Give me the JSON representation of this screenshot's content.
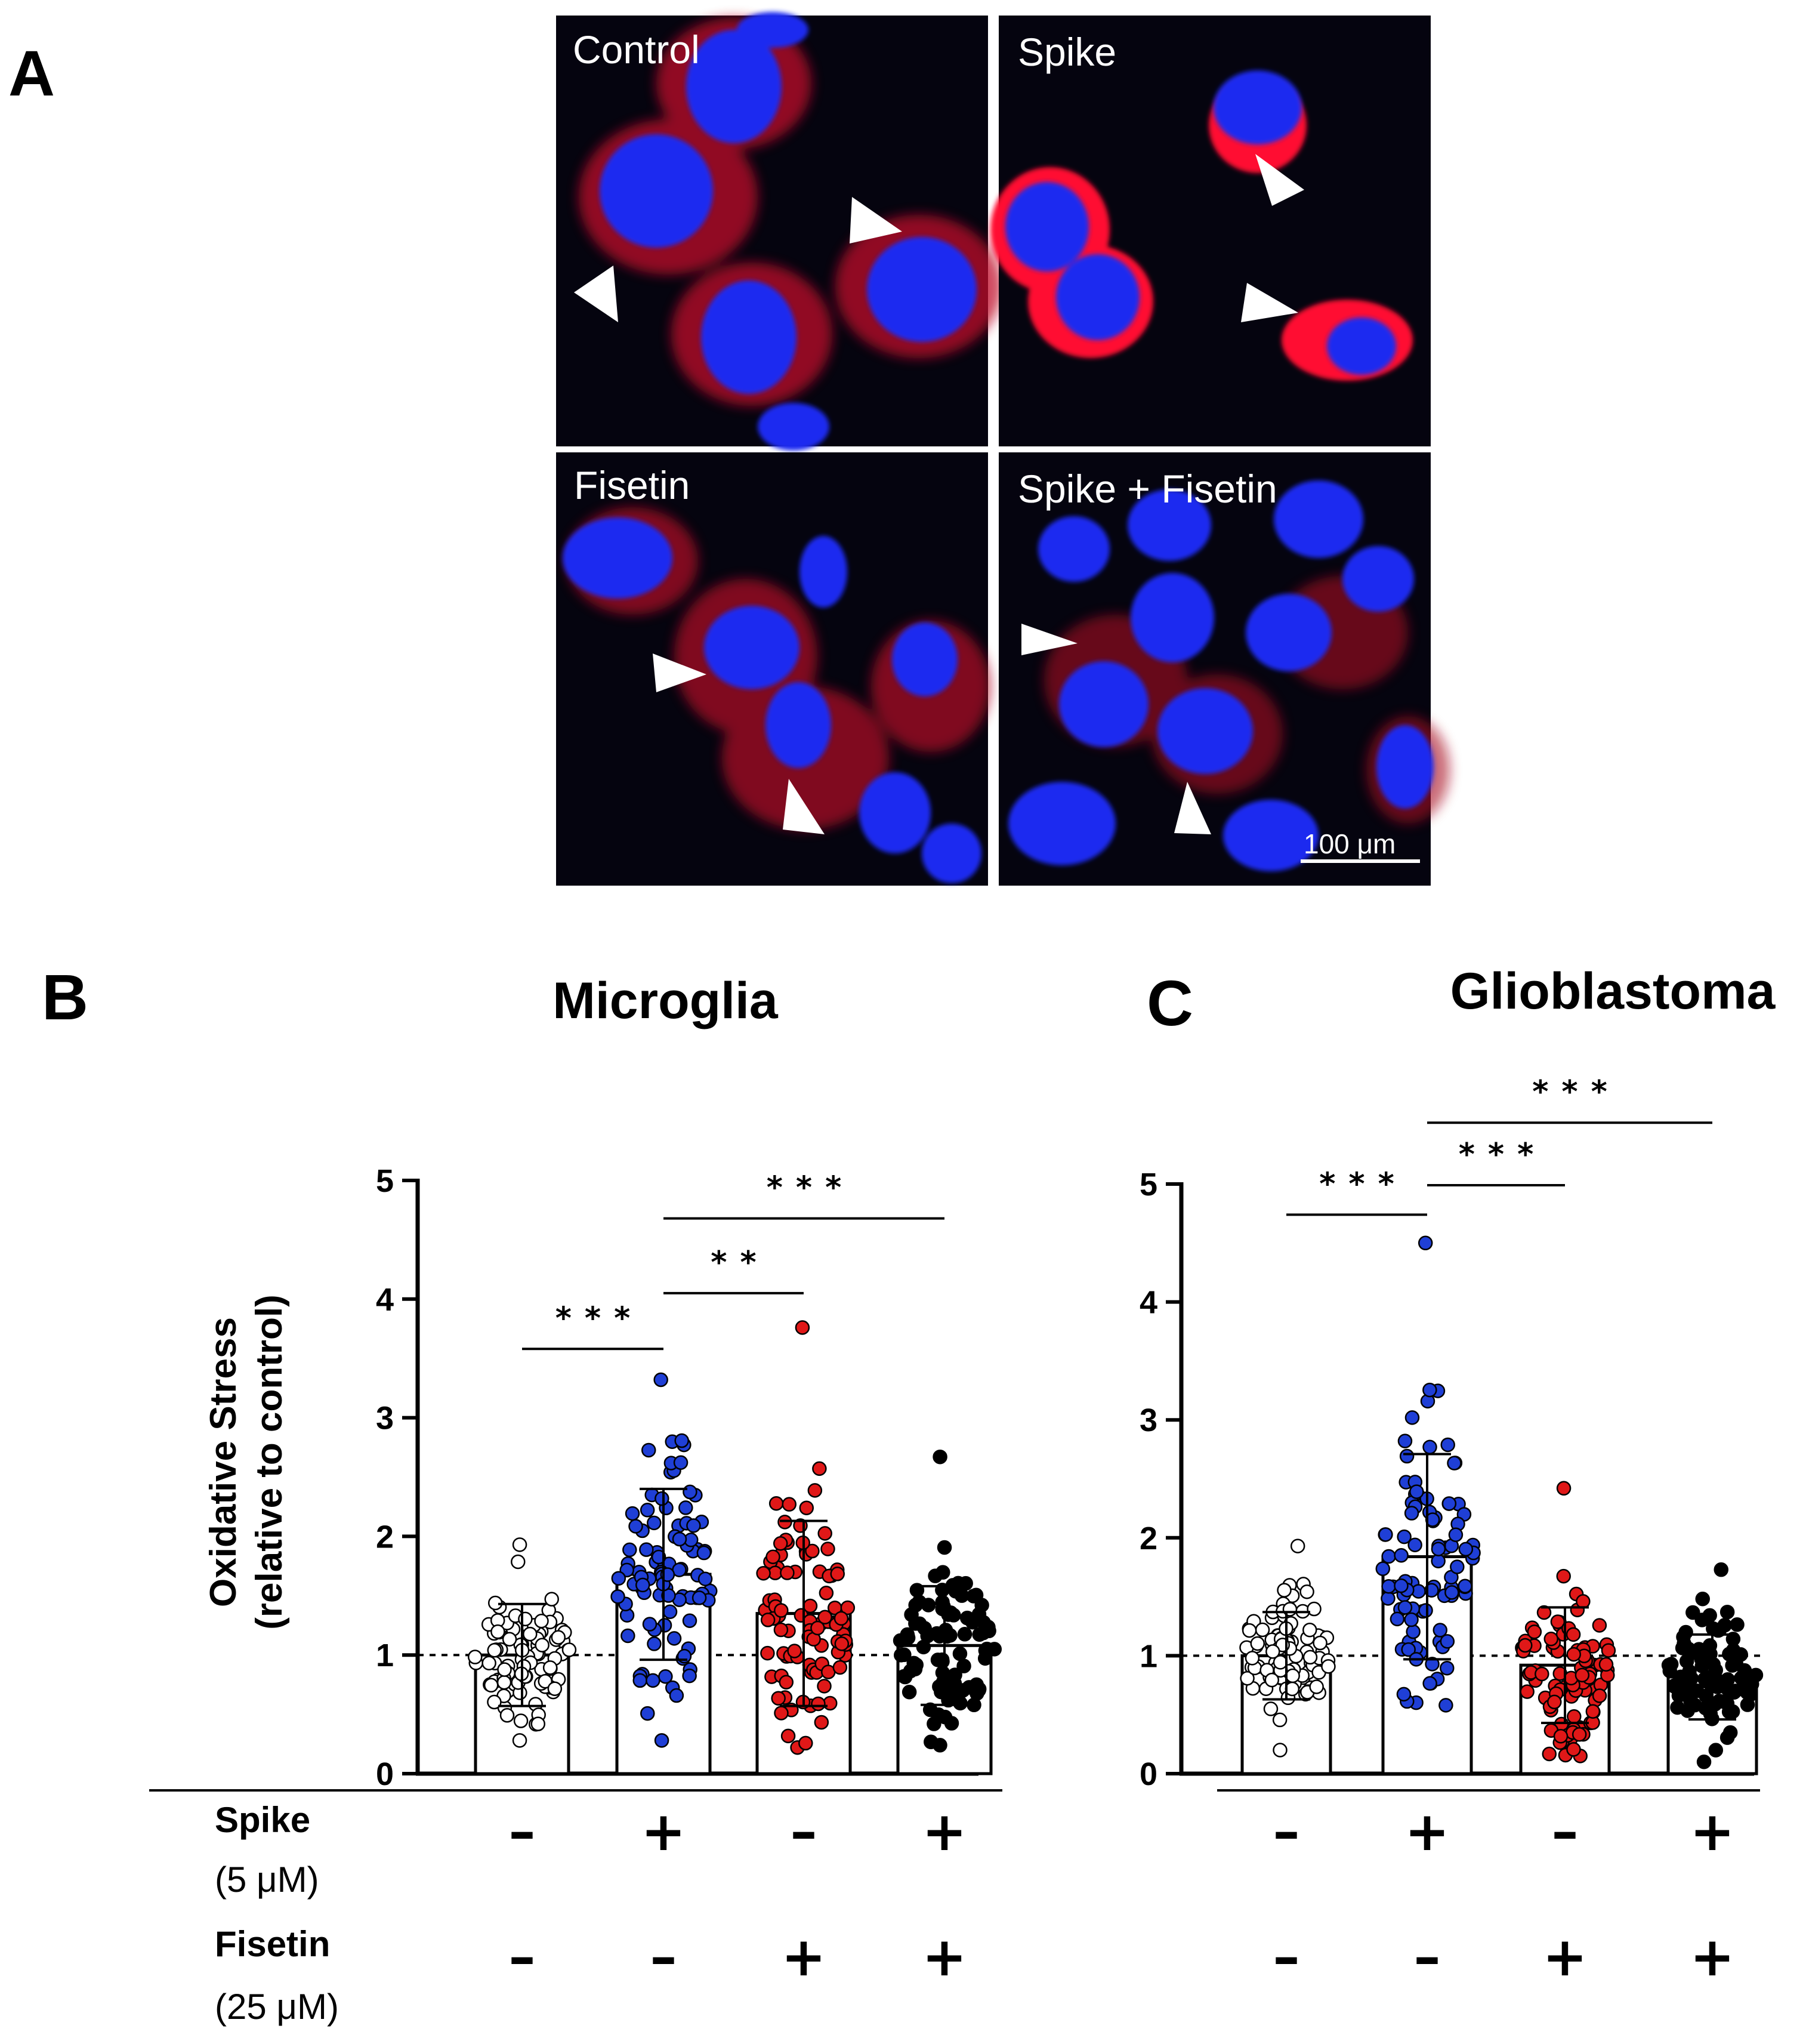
{
  "panel_labels": {
    "a": "A",
    "b": "B",
    "c": "C"
  },
  "micrographs": [
    {
      "id": "control",
      "label": "Control"
    },
    {
      "id": "spike",
      "label": "Spike"
    },
    {
      "id": "fisetin",
      "label": "Fisetin"
    },
    {
      "id": "spike-fisetin",
      "label": "Spike + Fisetin"
    }
  ],
  "scale_bar": {
    "label": "100 μm"
  },
  "conditions": {
    "rows": [
      {
        "name": "Spike",
        "dose": "(5 μM)",
        "signs": [
          "-",
          "+",
          "-",
          "+"
        ]
      },
      {
        "name": "Fisetin",
        "dose": "(25 μM)",
        "signs": [
          "-",
          "-",
          "+",
          "+"
        ]
      }
    ]
  },
  "colors": {
    "control": "#ffffff",
    "spike": "#1f3fd6",
    "fisetin": "#e01818",
    "combo": "#000000",
    "nucleus": "#1a2cff",
    "ros": "#ff1030"
  },
  "chart_data": [
    {
      "id": "microglia",
      "type": "bar",
      "title": "Microglia",
      "ylabel_line1": "Oxidative Stress",
      "ylabel_line2": "(relative to control)",
      "ylim": [
        0,
        5
      ],
      "yticks": [
        "0",
        "1",
        "2",
        "3",
        "4",
        "5"
      ],
      "reference_line": 1,
      "categories": [
        "Control",
        "Spike",
        "Fisetin",
        "Spike + Fisetin"
      ],
      "means": [
        1.0,
        1.68,
        1.35,
        1.08
      ],
      "sd": [
        0.43,
        0.72,
        0.78,
        0.5
      ],
      "point_range": [
        [
          0.28,
          1.93
        ],
        [
          0.28,
          3.32
        ],
        [
          0.22,
          3.76
        ],
        [
          0.24,
          2.67
        ]
      ],
      "point_colors": [
        "control",
        "spike",
        "fisetin",
        "combo"
      ],
      "significance": [
        {
          "from": 0,
          "to": 1,
          "y": 3.58,
          "label": "***"
        },
        {
          "from": 1,
          "to": 2,
          "y": 4.05,
          "label": "**"
        },
        {
          "from": 1,
          "to": 3,
          "y": 4.68,
          "label": "***"
        }
      ]
    },
    {
      "id": "glioblastoma",
      "type": "bar",
      "title": "Glioblastoma",
      "ylim": [
        0,
        5
      ],
      "yticks": [
        "0",
        "1",
        "2",
        "3",
        "4",
        "5"
      ],
      "reference_line": 1,
      "categories": [
        "Control",
        "Spike",
        "Fisetin",
        "Spike + Fisetin"
      ],
      "means": [
        1.0,
        1.84,
        0.92,
        0.82
      ],
      "sd": [
        0.37,
        0.87,
        0.49,
        0.36
      ],
      "point_range": [
        [
          0.2,
          1.93
        ],
        [
          0.58,
          4.5
        ],
        [
          0.15,
          2.42
        ],
        [
          0.1,
          1.73
        ]
      ],
      "point_colors": [
        "control",
        "spike",
        "fisetin",
        "combo"
      ],
      "significance": [
        {
          "from": 0,
          "to": 1,
          "y": 4.74,
          "label": "***"
        },
        {
          "from": 1,
          "to": 2,
          "y": 4.99,
          "label": "***"
        },
        {
          "from": 1,
          "to": 3,
          "y": 5.52,
          "label": "***"
        }
      ]
    }
  ]
}
